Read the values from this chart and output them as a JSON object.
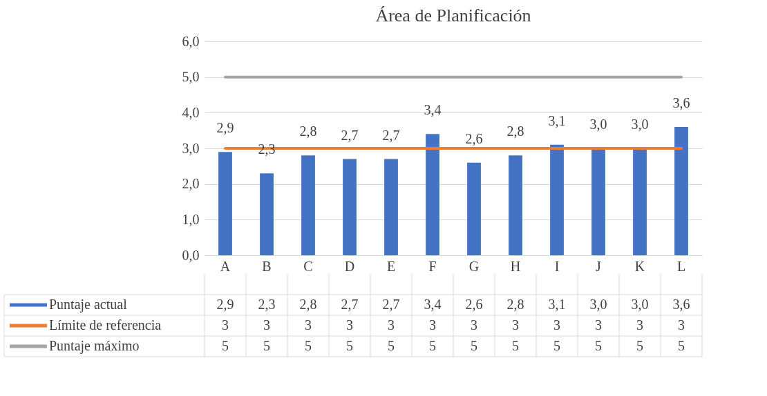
{
  "chart_data": {
    "type": "bar",
    "title": "Área de Planificación",
    "categories": [
      "A",
      "B",
      "C",
      "D",
      "E",
      "F",
      "G",
      "H",
      "I",
      "J",
      "K",
      "L"
    ],
    "series": [
      {
        "name": "Puntaje actual",
        "color": "#4472c4",
        "values": [
          2.9,
          2.3,
          2.8,
          2.7,
          2.7,
          3.4,
          2.6,
          2.8,
          3.1,
          3.0,
          3.0,
          3.6
        ],
        "value_labels": [
          "2,9",
          "2,3",
          "2,8",
          "2,7",
          "2,7",
          "3,4",
          "2,6",
          "2,8",
          "3,1",
          "3,0",
          "3,0",
          "3,6"
        ]
      },
      {
        "name": "Límite de referencia",
        "type": "line",
        "color": "#ed7d31",
        "values": [
          3,
          3,
          3,
          3,
          3,
          3,
          3,
          3,
          3,
          3,
          3,
          3
        ],
        "value_labels": [
          "3",
          "3",
          "3",
          "3",
          "3",
          "3",
          "3",
          "3",
          "3",
          "3",
          "3",
          "3"
        ]
      },
      {
        "name": "Puntaje máximo",
        "type": "line",
        "color": "#a5a5a5",
        "values": [
          5,
          5,
          5,
          5,
          5,
          5,
          5,
          5,
          5,
          5,
          5,
          5
        ],
        "value_labels": [
          "5",
          "5",
          "5",
          "5",
          "5",
          "5",
          "5",
          "5",
          "5",
          "5",
          "5",
          "5"
        ]
      }
    ],
    "ylim": [
      0,
      6
    ],
    "yticks": [
      {
        "value": 0,
        "label": "0,0"
      },
      {
        "value": 1,
        "label": "1,0"
      },
      {
        "value": 2,
        "label": "2,0"
      },
      {
        "value": 3,
        "label": "3,0"
      },
      {
        "value": 4,
        "label": "4,0"
      },
      {
        "value": 5,
        "label": "5,0"
      },
      {
        "value": 6,
        "label": "6,0"
      }
    ],
    "grid": "y",
    "legend": "bottom",
    "line_style": "solid",
    "marker": "none"
  }
}
